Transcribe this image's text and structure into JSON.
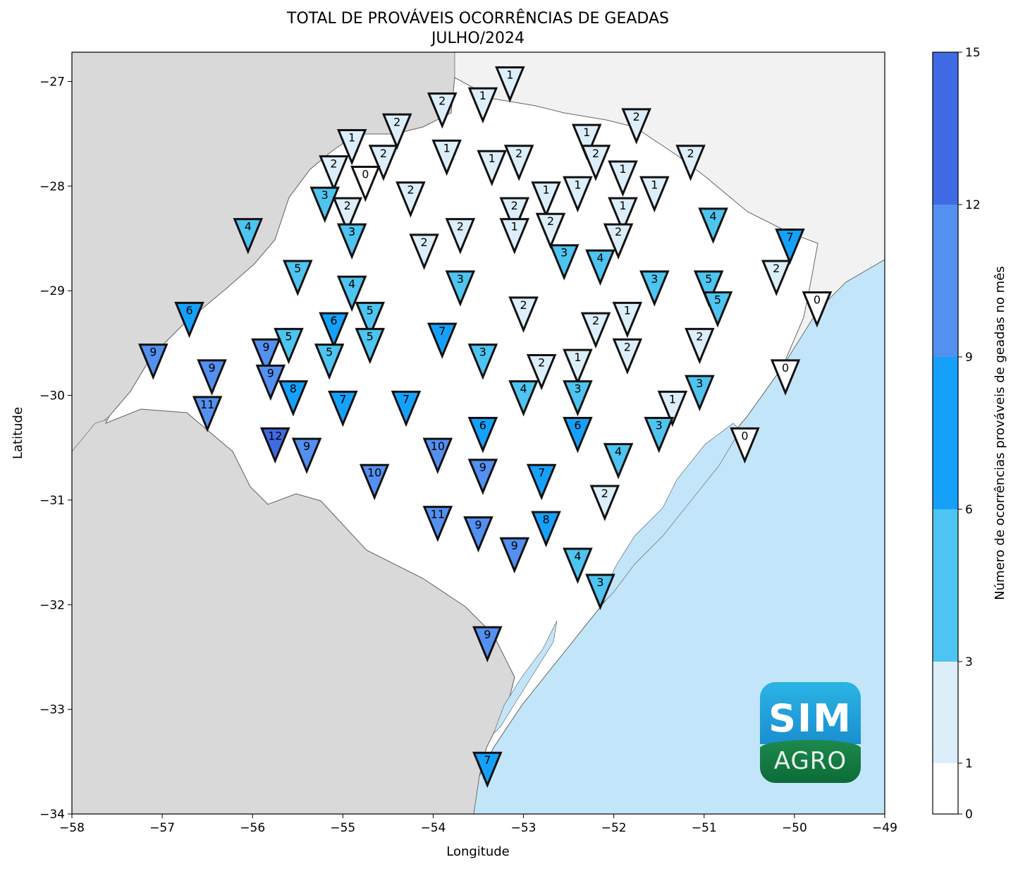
{
  "title": {
    "line1": "TOTAL DE PROVÁVEIS OCORRÊNCIAS DE GEADAS",
    "line2": "JULHO/2024"
  },
  "axes": {
    "xlabel": "Longitude",
    "ylabel": "Latitude",
    "xlim": [
      -58,
      -49
    ],
    "ylim": [
      -34,
      -26.72
    ],
    "xticks": [
      -58,
      -57,
      -56,
      -55,
      -54,
      -53,
      -52,
      -51,
      -50,
      -49
    ],
    "yticks": [
      -34,
      -33,
      -32,
      -31,
      -30,
      -29,
      -28,
      -27
    ]
  },
  "colorbar": {
    "label": "Número de ocorrências prováveis de geadas no mês",
    "boundaries": [
      0,
      1,
      3,
      6,
      9,
      12,
      15
    ],
    "colors": [
      "#ffffff",
      "#dbeef9",
      "#4ec4f0",
      "#15a1fa",
      "#5390f0",
      "#3f6be4"
    ]
  },
  "colors": {
    "land_neighbor": "#d9d9d9",
    "land_neighbor_light": "#f2f2f2",
    "ocean": "#c3e5fa",
    "state": "#ffffff"
  },
  "logo": {
    "line1": "SIM",
    "line2": "AGRO"
  },
  "chart_data": {
    "type": "scatter",
    "marker": "inverted-triangle",
    "points": [
      {
        "lon": -53.15,
        "lat": -27.0,
        "v": 1
      },
      {
        "lon": -53.45,
        "lat": -27.2,
        "v": 1
      },
      {
        "lon": -53.9,
        "lat": -27.25,
        "v": 2
      },
      {
        "lon": -54.4,
        "lat": -27.45,
        "v": 2
      },
      {
        "lon": -51.75,
        "lat": -27.4,
        "v": 2
      },
      {
        "lon": -52.3,
        "lat": -27.55,
        "v": 1
      },
      {
        "lon": -54.9,
        "lat": -27.6,
        "v": 1
      },
      {
        "lon": -54.55,
        "lat": -27.75,
        "v": 2
      },
      {
        "lon": -53.85,
        "lat": -27.7,
        "v": 1
      },
      {
        "lon": -53.35,
        "lat": -27.8,
        "v": 1
      },
      {
        "lon": -53.05,
        "lat": -27.75,
        "v": 2
      },
      {
        "lon": -52.2,
        "lat": -27.75,
        "v": 2
      },
      {
        "lon": -51.15,
        "lat": -27.75,
        "v": 2
      },
      {
        "lon": -55.1,
        "lat": -27.85,
        "v": 2
      },
      {
        "lon": -54.75,
        "lat": -27.95,
        "v": 0
      },
      {
        "lon": -51.9,
        "lat": -27.9,
        "v": 1
      },
      {
        "lon": -52.4,
        "lat": -28.05,
        "v": 1
      },
      {
        "lon": -51.55,
        "lat": -28.05,
        "v": 1
      },
      {
        "lon": -54.25,
        "lat": -28.1,
        "v": 2
      },
      {
        "lon": -52.75,
        "lat": -28.1,
        "v": 1
      },
      {
        "lon": -55.2,
        "lat": -28.15,
        "v": 3
      },
      {
        "lon": -54.95,
        "lat": -28.25,
        "v": 2
      },
      {
        "lon": -53.1,
        "lat": -28.25,
        "v": 2
      },
      {
        "lon": -51.9,
        "lat": -28.25,
        "v": 1
      },
      {
        "lon": -50.9,
        "lat": -28.35,
        "v": 4
      },
      {
        "lon": -52.7,
        "lat": -28.4,
        "v": 2
      },
      {
        "lon": -53.7,
        "lat": -28.45,
        "v": 2
      },
      {
        "lon": -53.1,
        "lat": -28.45,
        "v": 1
      },
      {
        "lon": -56.05,
        "lat": -28.45,
        "v": 4
      },
      {
        "lon": -54.9,
        "lat": -28.5,
        "v": 3
      },
      {
        "lon": -51.95,
        "lat": -28.5,
        "v": 2
      },
      {
        "lon": -54.1,
        "lat": -28.6,
        "v": 2
      },
      {
        "lon": -50.05,
        "lat": -28.55,
        "v": 7
      },
      {
        "lon": -52.55,
        "lat": -28.7,
        "v": 3
      },
      {
        "lon": -52.15,
        "lat": -28.75,
        "v": 4
      },
      {
        "lon": -50.2,
        "lat": -28.85,
        "v": 2
      },
      {
        "lon": -55.5,
        "lat": -28.85,
        "v": 5
      },
      {
        "lon": -51.55,
        "lat": -28.95,
        "v": 3
      },
      {
        "lon": -50.95,
        "lat": -28.95,
        "v": 5
      },
      {
        "lon": -53.7,
        "lat": -28.95,
        "v": 3
      },
      {
        "lon": -54.9,
        "lat": -29.0,
        "v": 4
      },
      {
        "lon": -49.75,
        "lat": -29.15,
        "v": 0
      },
      {
        "lon": -50.85,
        "lat": -29.15,
        "v": 5
      },
      {
        "lon": -53.0,
        "lat": -29.2,
        "v": 2
      },
      {
        "lon": -51.85,
        "lat": -29.25,
        "v": 1
      },
      {
        "lon": -56.7,
        "lat": -29.25,
        "v": 6
      },
      {
        "lon": -54.7,
        "lat": -29.25,
        "v": 5
      },
      {
        "lon": -55.1,
        "lat": -29.35,
        "v": 6
      },
      {
        "lon": -52.2,
        "lat": -29.35,
        "v": 2
      },
      {
        "lon": -54.7,
        "lat": -29.5,
        "v": 5
      },
      {
        "lon": -55.6,
        "lat": -29.5,
        "v": 5
      },
      {
        "lon": -53.9,
        "lat": -29.45,
        "v": 7
      },
      {
        "lon": -51.05,
        "lat": -29.5,
        "v": 2
      },
      {
        "lon": -55.85,
        "lat": -29.6,
        "v": 9
      },
      {
        "lon": -51.85,
        "lat": -29.6,
        "v": 2
      },
      {
        "lon": -57.1,
        "lat": -29.65,
        "v": 9
      },
      {
        "lon": -55.15,
        "lat": -29.65,
        "v": 5
      },
      {
        "lon": -53.45,
        "lat": -29.65,
        "v": 3
      },
      {
        "lon": -52.4,
        "lat": -29.7,
        "v": 1
      },
      {
        "lon": -52.8,
        "lat": -29.75,
        "v": 2
      },
      {
        "lon": -56.45,
        "lat": -29.8,
        "v": 9
      },
      {
        "lon": -50.1,
        "lat": -29.8,
        "v": 0
      },
      {
        "lon": -55.8,
        "lat": -29.85,
        "v": 9
      },
      {
        "lon": -53.0,
        "lat": -30.0,
        "v": 4
      },
      {
        "lon": -52.4,
        "lat": -30.0,
        "v": 3
      },
      {
        "lon": -51.05,
        "lat": -29.95,
        "v": 3
      },
      {
        "lon": -55.55,
        "lat": -30.0,
        "v": 8
      },
      {
        "lon": -55.0,
        "lat": -30.1,
        "v": 7
      },
      {
        "lon": -54.3,
        "lat": -30.1,
        "v": 7
      },
      {
        "lon": -56.5,
        "lat": -30.15,
        "v": 11
      },
      {
        "lon": -51.35,
        "lat": -30.1,
        "v": 1
      },
      {
        "lon": -53.45,
        "lat": -30.35,
        "v": 6
      },
      {
        "lon": -52.4,
        "lat": -30.35,
        "v": 6
      },
      {
        "lon": -51.5,
        "lat": -30.35,
        "v": 3
      },
      {
        "lon": -50.55,
        "lat": -30.45,
        "v": 0
      },
      {
        "lon": -55.75,
        "lat": -30.45,
        "v": 12
      },
      {
        "lon": -55.4,
        "lat": -30.55,
        "v": 9
      },
      {
        "lon": -53.95,
        "lat": -30.55,
        "v": 10
      },
      {
        "lon": -51.95,
        "lat": -30.6,
        "v": 4
      },
      {
        "lon": -53.45,
        "lat": -30.75,
        "v": 9
      },
      {
        "lon": -52.8,
        "lat": -30.8,
        "v": 7
      },
      {
        "lon": -54.65,
        "lat": -30.8,
        "v": 10
      },
      {
        "lon": -52.1,
        "lat": -31.0,
        "v": 2
      },
      {
        "lon": -53.95,
        "lat": -31.2,
        "v": 11
      },
      {
        "lon": -52.75,
        "lat": -31.25,
        "v": 8
      },
      {
        "lon": -53.5,
        "lat": -31.3,
        "v": 9
      },
      {
        "lon": -53.1,
        "lat": -31.5,
        "v": 9
      },
      {
        "lon": -52.4,
        "lat": -31.6,
        "v": 4
      },
      {
        "lon": -52.15,
        "lat": -31.85,
        "v": 3
      },
      {
        "lon": -53.4,
        "lat": -32.35,
        "v": 9
      },
      {
        "lon": -53.4,
        "lat": -33.55,
        "v": 7
      }
    ]
  }
}
